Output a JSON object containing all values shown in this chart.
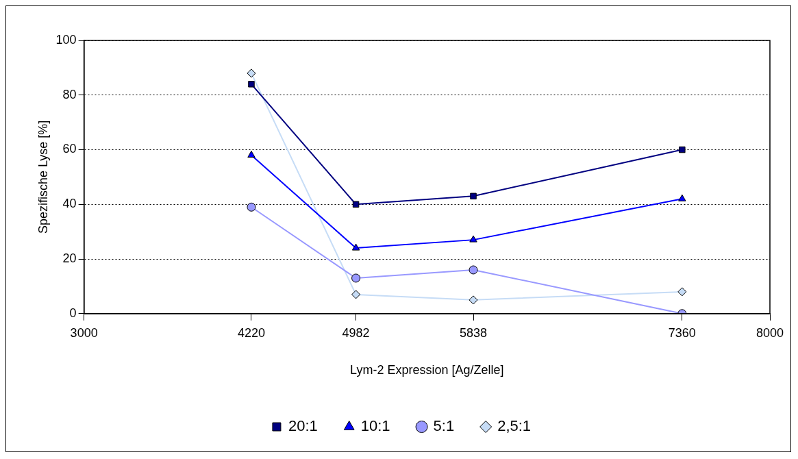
{
  "chart_data": {
    "type": "line",
    "xlabel": "Lym-2 Expression [Ag/Zelle]",
    "ylabel": "Spezifische Lyse [%]",
    "x": [
      4220,
      4982,
      5838,
      7360
    ],
    "xlim": [
      3000,
      8000
    ],
    "xticks": [
      3000,
      4220,
      4982,
      5838,
      7360,
      8000
    ],
    "ylim": [
      0,
      100
    ],
    "yticks": [
      0,
      20,
      40,
      60,
      80,
      100
    ],
    "grid": "y",
    "legend": "bottom",
    "line_style": "solid",
    "series": [
      {
        "name": "20:1",
        "color": "#000080",
        "marker": "square",
        "values": [
          84,
          40,
          43,
          60
        ]
      },
      {
        "name": "10:1",
        "color": "#0000ff",
        "marker": "triangle",
        "values": [
          58,
          24,
          27,
          42
        ]
      },
      {
        "name": "5:1",
        "color": "#9999ff",
        "marker": "circle",
        "values": [
          39,
          13,
          16,
          0
        ]
      },
      {
        "name": "2,5:1",
        "color": "#c6dcf6",
        "marker": "diamond",
        "values": [
          88,
          7,
          5,
          8
        ]
      }
    ]
  }
}
